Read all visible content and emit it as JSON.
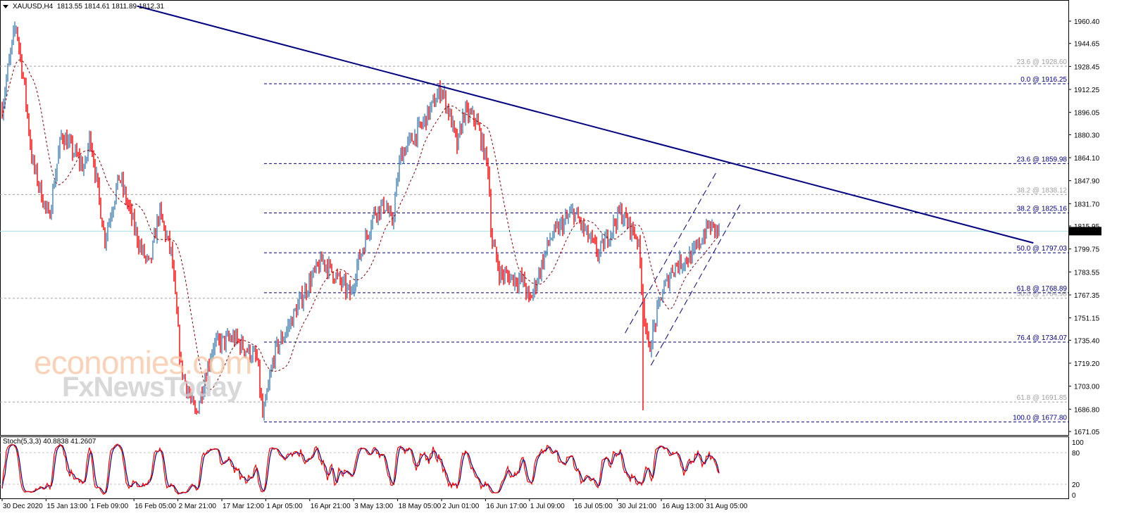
{
  "header": {
    "symbol": "XAUUSD,H4",
    "ohlc": "1813.55 1814.61 1811.89 1812.31"
  },
  "watermark": {
    "line1": "economies.com",
    "line2": "FxNewsToday"
  },
  "colors": {
    "up_bar": "#4682b4",
    "down_bar": "#ff0000",
    "trendline": "#000080",
    "fib_primary": "#000080",
    "fib_secondary": "#a0a0a0",
    "ma": "#800000",
    "current_price_line": "#a8e0e8",
    "stoch_main": "#ff0000",
    "stoch_signal": "#000080"
  },
  "chart_data": {
    "type": "candlestick-bars",
    "symbol": "XAUUSD",
    "timeframe": "H4",
    "ylim": [
      1671.05,
      1960.4
    ],
    "y_ticks": [
      "1960.40",
      "1944.65",
      "1928.45",
      "1912.25",
      "1896.05",
      "1880.30",
      "1864.10",
      "1847.90",
      "1831.70",
      "1815.95",
      "1799.75",
      "1783.55",
      "1767.35",
      "1751.15",
      "1735.40",
      "1719.20",
      "1703.00",
      "1686.80",
      "1671.05"
    ],
    "x_ticks": [
      "30 Dec 2020",
      "15 Jan 13:00",
      "1 Feb 09:00",
      "16 Feb 05:00",
      "2 Mar 21:00",
      "17 Mar 12:00",
      "1 Apr 05:00",
      "16 Apr 21:00",
      "3 May 13:00",
      "18 May 05:00",
      "2 Jun 01:00",
      "16 Jun 17:00",
      "1 Jul 09:00",
      "16 Jul 05:00",
      "30 Jul 21:00",
      "16 Aug 13:00",
      "31 Aug 05:00"
    ],
    "current_price": "1812.31",
    "price_path_approx": [
      [
        "2020-12-30",
        1899
      ],
      [
        "2021-01-01",
        1925
      ],
      [
        "2021-01-04",
        1959
      ],
      [
        "2021-01-07",
        1916
      ],
      [
        "2021-01-10",
        1861
      ],
      [
        "2021-01-16",
        1821
      ],
      [
        "2021-01-21",
        1881
      ],
      [
        "2021-01-30",
        1856
      ],
      [
        "2021-02-01",
        1881
      ],
      [
        "2021-02-06",
        1807
      ],
      [
        "2021-02-11",
        1851
      ],
      [
        "2021-02-18",
        1801
      ],
      [
        "2021-02-21",
        1787
      ],
      [
        "2021-02-24",
        1826
      ],
      [
        "2021-02-28",
        1796
      ],
      [
        "2021-03-03",
        1717
      ],
      [
        "2021-03-08",
        1682
      ],
      [
        "2021-03-14",
        1732
      ],
      [
        "2021-03-21",
        1737
      ],
      [
        "2021-03-29",
        1722
      ],
      [
        "2021-03-31",
        1680
      ],
      [
        "2021-04-04",
        1727
      ],
      [
        "2021-04-08",
        1742
      ],
      [
        "2021-04-16",
        1777
      ],
      [
        "2021-04-21",
        1792
      ],
      [
        "2021-05-02",
        1767
      ],
      [
        "2021-05-04",
        1787
      ],
      [
        "2021-05-10",
        1826
      ],
      [
        "2021-05-14",
        1831
      ],
      [
        "2021-05-16",
        1816
      ],
      [
        "2021-05-19",
        1866
      ],
      [
        "2021-05-26",
        1886
      ],
      [
        "2021-06-02",
        1913
      ],
      [
        "2021-06-05",
        1891
      ],
      [
        "2021-06-07",
        1871
      ],
      [
        "2021-06-09",
        1896
      ],
      [
        "2021-06-13",
        1891
      ],
      [
        "2021-06-17",
        1856
      ],
      [
        "2021-06-18",
        1807
      ],
      [
        "2021-06-21",
        1782
      ],
      [
        "2021-06-29",
        1777
      ],
      [
        "2021-07-01",
        1762
      ],
      [
        "2021-07-08",
        1807
      ],
      [
        "2021-07-16",
        1826
      ],
      [
        "2021-07-24",
        1796
      ],
      [
        "2021-07-31",
        1826
      ],
      [
        "2021-08-07",
        1807
      ],
      [
        "2021-08-09",
        1762
      ],
      [
        "2021-08-11",
        1727
      ],
      [
        "2021-08-16",
        1767
      ],
      [
        "2021-08-20",
        1787
      ],
      [
        "2021-08-27",
        1796
      ],
      [
        "2021-09-01",
        1816
      ],
      [
        "2021-09-05",
        1812.31
      ]
    ],
    "flash_crash_low": {
      "date": "2021-08-09",
      "price": 1686
    },
    "moving_average": "dashed",
    "trendline": [
      [
        "2021-02-17",
        1971
      ],
      [
        "2021-12-21",
        1804
      ]
    ],
    "channel": {
      "upper": [
        [
          "2021-08-02",
          1740.5
        ],
        [
          "2021-09-04",
          1854.7
        ]
      ],
      "lower": [
        [
          "2021-08-12",
          1717.7
        ],
        [
          "2021-09-12",
          1831.4
        ]
      ]
    },
    "fib_primary": [
      {
        "label": "0.0 @ 1916.25",
        "price": 1916.25
      },
      {
        "label": "23.6 @ 1859.98",
        "price": 1859.98
      },
      {
        "label": "38.2 @ 1825.16",
        "price": 1825.16
      },
      {
        "label": "50.0 @ 1797.03",
        "price": 1797.03
      },
      {
        "label": "61.8 @ 1768.89",
        "price": 1768.89
      },
      {
        "label": "76.4 @ 1734.07",
        "price": 1734.07
      },
      {
        "label": "100.0 @ 1677.80",
        "price": 1677.8
      }
    ],
    "fib_secondary": [
      {
        "label": "23.6 @ 1928.60",
        "price": 1928.6
      },
      {
        "label": "38.2 @ 1838.12",
        "price": 1838.12
      },
      {
        "label": "50.0 @ 1764.98",
        "price": 1764.98
      },
      {
        "label": "61.8 @ 1691.85",
        "price": 1691.85
      }
    ],
    "stochastic": {
      "label": "Stoch(5,3,3) 40.8838 41.2607",
      "main": 40.8838,
      "signal": 41.2607,
      "levels": [
        80,
        20
      ],
      "ticks": [
        "100",
        "80",
        "20",
        "0"
      ],
      "ylim": [
        0,
        100
      ]
    }
  }
}
